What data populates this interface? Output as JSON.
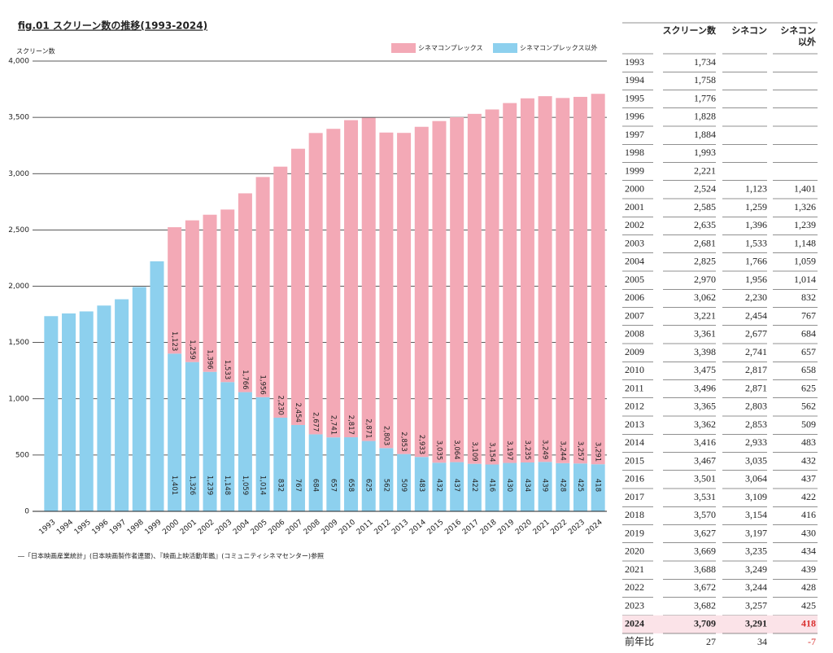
{
  "chart_data": {
    "type": "bar",
    "stacked": true,
    "title": "fig.01 スクリーン数の推移(1993-2024)",
    "ylabel": "スクリーン数",
    "categories": [
      "1993",
      "1994",
      "1995",
      "1996",
      "1997",
      "1998",
      "1999",
      "2000",
      "2001",
      "2002",
      "2003",
      "2004",
      "2005",
      "2006",
      "2007",
      "2008",
      "2009",
      "2010",
      "2011",
      "2012",
      "2013",
      "2014",
      "2015",
      "2016",
      "2017",
      "2018",
      "2019",
      "2020",
      "2021",
      "2022",
      "2023",
      "2024"
    ],
    "series": [
      {
        "name": "シネマコンプレックス以外",
        "color": "#8dd0ee",
        "values": [
          1734,
          1758,
          1776,
          1828,
          1884,
          1993,
          2221,
          1401,
          1326,
          1239,
          1148,
          1059,
          1014,
          832,
          767,
          684,
          657,
          658,
          625,
          562,
          509,
          483,
          432,
          437,
          422,
          416,
          430,
          434,
          439,
          428,
          425,
          418
        ],
        "value_labels": [
          null,
          null,
          null,
          null,
          null,
          null,
          null,
          "1,401",
          "1,326",
          "1,239",
          "1,148",
          "1,059",
          "1,014",
          "832",
          "767",
          "684",
          "657",
          "658",
          "625",
          "562",
          "509",
          "483",
          "432",
          "437",
          "422",
          "416",
          "430",
          "434",
          "439",
          "428",
          "425",
          "418"
        ]
      },
      {
        "name": "シネマコンプレックス",
        "color": "#f3a9b6",
        "values": [
          null,
          null,
          null,
          null,
          null,
          null,
          null,
          1123,
          1259,
          1396,
          1533,
          1766,
          1956,
          2230,
          2454,
          2677,
          2741,
          2817,
          2871,
          2803,
          2853,
          2933,
          3035,
          3064,
          3109,
          3154,
          3197,
          3235,
          3249,
          3244,
          3257,
          3291
        ],
        "value_labels": [
          null,
          null,
          null,
          null,
          null,
          null,
          null,
          "1,123",
          "1,259",
          "1,396",
          "1,533",
          "1,766",
          "1,956",
          "2,230",
          "2,454",
          "2,677",
          "2,741",
          "2,817",
          "2,871",
          "2,803",
          "2,853",
          "2,933",
          "3,035",
          "3,064",
          "3,109",
          "3,154",
          "3,197",
          "3,235",
          "3,249",
          "3,244",
          "3,257",
          "3,291"
        ]
      }
    ],
    "ylim": [
      0,
      4000
    ],
    "yticks": [
      0,
      500,
      {
        "value": 1000,
        "label": "1,000"
      },
      {
        "value": 1500,
        "label": "1,500"
      },
      {
        "value": 2000,
        "label": "2,000"
      },
      {
        "value": 2500,
        "label": "2,500"
      },
      {
        "value": 3000,
        "label": "3,000"
      },
      {
        "value": 3500,
        "label": "3,500"
      },
      {
        "value": 4000,
        "label": "4,000"
      }
    ],
    "grid": true,
    "legend": "top-right",
    "note": "―「日本映画産業統計」(日本映画製作者連盟)、『映画上映活動年鑑』(コミュニティシネマセンター)参照"
  },
  "table": {
    "header": [
      "スクリーン数",
      "シネコン",
      [
        "シネコン",
        "以外"
      ]
    ],
    "rows": [
      [
        "1993",
        "1,734",
        null,
        null
      ],
      [
        "1994",
        "1,758",
        null,
        null
      ],
      [
        "1995",
        "1,776",
        null,
        null
      ],
      [
        "1996",
        "1,828",
        null,
        null
      ],
      [
        "1997",
        "1,884",
        null,
        null
      ],
      [
        "1998",
        "1,993",
        null,
        null
      ],
      [
        "1999",
        "2,221",
        null,
        null
      ],
      [
        "2000",
        "2,524",
        "1,123",
        "1,401"
      ],
      [
        "2001",
        "2,585",
        "1,259",
        "1,326"
      ],
      [
        "2002",
        "2,635",
        "1,396",
        "1,239"
      ],
      [
        "2003",
        "2,681",
        "1,533",
        "1,148"
      ],
      [
        "2004",
        "2,825",
        "1,766",
        "1,059"
      ],
      [
        "2005",
        "2,970",
        "1,956",
        "1,014"
      ],
      [
        "2006",
        "3,062",
        "2,230",
        "832"
      ],
      [
        "2007",
        "3,221",
        "2,454",
        "767"
      ],
      [
        "2008",
        "3,361",
        "2,677",
        "684"
      ],
      [
        "2009",
        "3,398",
        "2,741",
        "657"
      ],
      [
        "2010",
        "3,475",
        "2,817",
        "658"
      ],
      [
        "2011",
        "3,496",
        "2,871",
        "625"
      ],
      [
        "2012",
        "3,365",
        "2,803",
        "562"
      ],
      [
        "2013",
        "3,362",
        "2,853",
        "509"
      ],
      [
        "2014",
        "3,416",
        "2,933",
        "483"
      ],
      [
        "2015",
        "3,467",
        "3,035",
        "432"
      ],
      [
        "2016",
        "3,501",
        "3,064",
        "437"
      ],
      [
        "2017",
        "3,531",
        "3,109",
        "422"
      ],
      [
        "2018",
        "3,570",
        "3,154",
        "416"
      ],
      [
        "2019",
        "3,627",
        "3,197",
        "430"
      ],
      [
        "2020",
        "3,669",
        "3,235",
        "434"
      ],
      [
        "2021",
        "3,688",
        "3,249",
        "439"
      ],
      [
        "2022",
        "3,672",
        "3,244",
        "428"
      ],
      [
        "2023",
        "3,682",
        "3,257",
        "425"
      ],
      [
        "2024",
        "3,709",
        "3,291",
        "418"
      ],
      [
        "前年比",
        "27",
        "34",
        "-7"
      ]
    ]
  }
}
